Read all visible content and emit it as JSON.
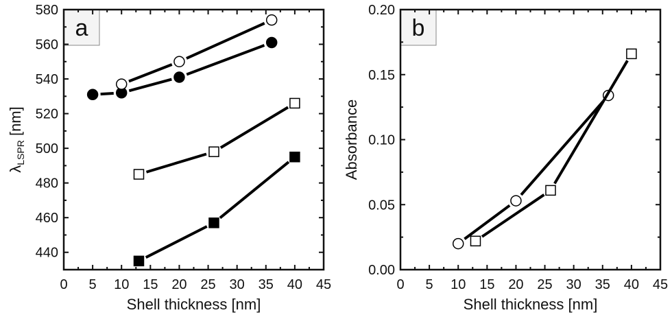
{
  "chart_data": [
    {
      "type": "line",
      "panel_label": "a",
      "title": "",
      "xlabel": "Shell thickness [nm]",
      "ylabel_main": "λ",
      "ylabel_sub": "LSPR",
      "ylabel_unit": " [nm]",
      "xlim": [
        0,
        45
      ],
      "ylim": [
        430,
        580
      ],
      "xticks": [
        0,
        5,
        10,
        15,
        20,
        25,
        30,
        35,
        40,
        45
      ],
      "yticks": [
        440,
        460,
        480,
        500,
        520,
        540,
        560,
        580
      ],
      "grid": false,
      "series": [
        {
          "name": "filled-circles",
          "marker": "circle",
          "filled": true,
          "x": [
            5,
            10,
            20,
            36
          ],
          "y": [
            531,
            532,
            541,
            561
          ]
        },
        {
          "name": "open-circles",
          "marker": "circle",
          "filled": false,
          "x": [
            10,
            20,
            36
          ],
          "y": [
            537,
            550,
            574
          ]
        },
        {
          "name": "open-squares",
          "marker": "square",
          "filled": false,
          "x": [
            13,
            26,
            40
          ],
          "y": [
            485,
            498,
            526
          ]
        },
        {
          "name": "filled-squares",
          "marker": "square",
          "filled": true,
          "x": [
            13,
            26,
            40
          ],
          "y": [
            435,
            457,
            495
          ]
        }
      ]
    },
    {
      "type": "line",
      "panel_label": "b",
      "title": "",
      "xlabel": "Shell thickness [nm]",
      "ylabel_main": "Absorbance",
      "ylabel_sub": "",
      "ylabel_unit": "",
      "xlim": [
        0,
        45
      ],
      "ylim": [
        0,
        0.2
      ],
      "xticks": [
        0,
        5,
        10,
        15,
        20,
        25,
        30,
        35,
        40,
        45
      ],
      "yticks": [
        0.0,
        0.05,
        0.1,
        0.15,
        0.2
      ],
      "ytick_labels": [
        "0.00",
        "0.05",
        "0.10",
        "0.15",
        "0.20"
      ],
      "grid": false,
      "series": [
        {
          "name": "open-circles",
          "marker": "circle",
          "filled": false,
          "x": [
            10,
            20,
            36
          ],
          "y": [
            0.02,
            0.053,
            0.134
          ]
        },
        {
          "name": "open-squares",
          "marker": "square",
          "filled": false,
          "x": [
            13,
            26,
            40
          ],
          "y": [
            0.022,
            0.061,
            0.166
          ]
        }
      ]
    }
  ]
}
